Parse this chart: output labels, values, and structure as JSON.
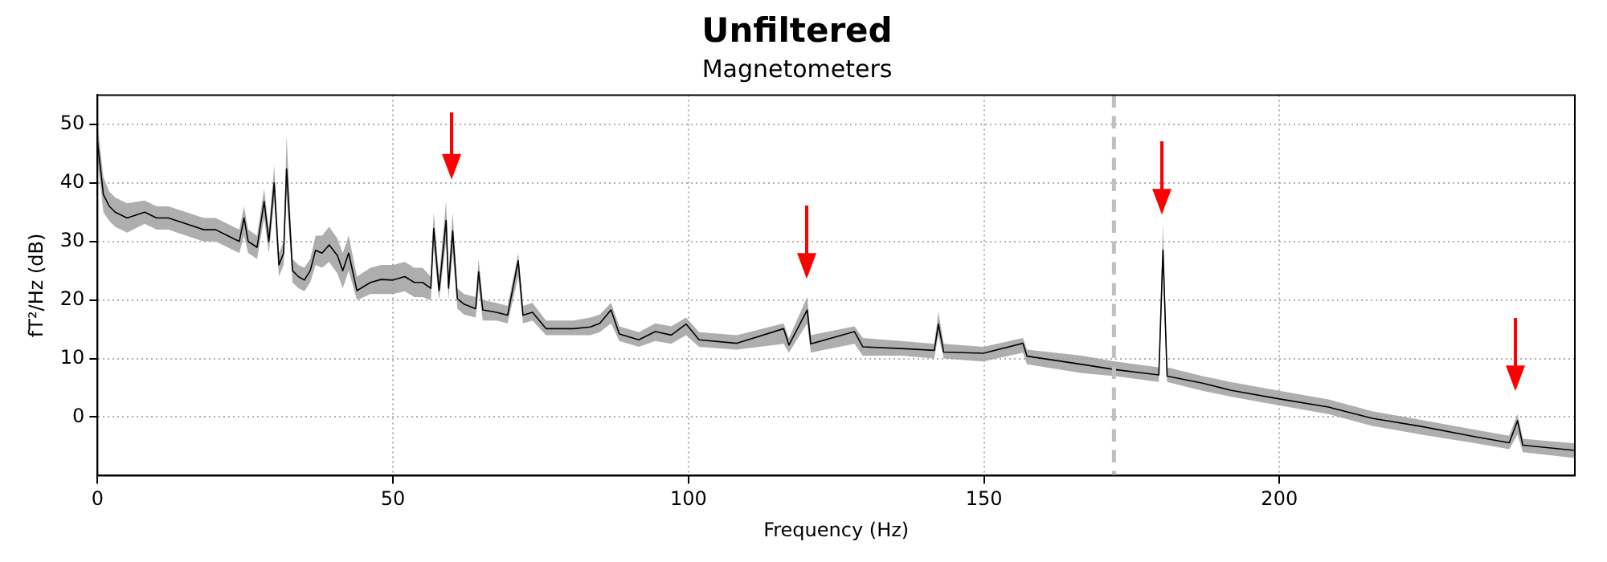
{
  "chart_data": {
    "type": "line",
    "title": "Unfiltered",
    "subtitle": "Magnetometers",
    "xlabel": "Frequency (Hz)",
    "ylabel": "fT²/Hz (dB)",
    "xlim": [
      0,
      250
    ],
    "xticks": [
      0,
      50,
      100,
      150,
      200
    ],
    "ylim": [
      -10,
      55
    ],
    "yticks": [
      0,
      10,
      20,
      30,
      40,
      50
    ],
    "grid": true,
    "legend": false,
    "marker": "none",
    "line_style": "solid",
    "ref_lines": [
      {
        "axis": "x",
        "value": 172,
        "color": "#bfbfbf",
        "line_style": "dashed"
      }
    ],
    "x": [
      0,
      1,
      2,
      3,
      5,
      8,
      10,
      12,
      15,
      18,
      20,
      22,
      24,
      24.8,
      25.5,
      27,
      28.2,
      29,
      29.9,
      30.7,
      31.5,
      32,
      33,
      34,
      35,
      36,
      36.9,
      38,
      39.2,
      40.6,
      41.5,
      42.5,
      43.9,
      46.2,
      48,
      50,
      52,
      53.6,
      55,
      56.4,
      56.9,
      57.8,
      59,
      59.4,
      60.1,
      60.9,
      62,
      64,
      64.5,
      65.2,
      67.5,
      69.4,
      71.2,
      72,
      73.6,
      75.9,
      80.6,
      83.4,
      85,
      86.9,
      88.3,
      91.6,
      94.4,
      97.1,
      99.6,
      101.8,
      108.2,
      116.1,
      117,
      120.1,
      120.7,
      128.1,
      129.5,
      136,
      141.6,
      142.3,
      143.2,
      149.9,
      156.6,
      157.3,
      166.6,
      172.2,
      179.6,
      180.3,
      181,
      187,
      191.7,
      200,
      208.3,
      215.7,
      224,
      233.3,
      238.9,
      240.3,
      241.2,
      250
    ],
    "series": [
      {
        "color": "#000000",
        "values": [
          47,
          38,
          36,
          35,
          34,
          35,
          34,
          34,
          33,
          32,
          32,
          31,
          30,
          34,
          30,
          29,
          36.8,
          30,
          40,
          26,
          28,
          42.4,
          25,
          24,
          23.4,
          25,
          28.5,
          28,
          29.4,
          27.6,
          25,
          28,
          21.6,
          23,
          23.5,
          23.4,
          24,
          23,
          23,
          22,
          32.2,
          21.6,
          33.6,
          22,
          31.8,
          20.2,
          19.3,
          18.5,
          24.8,
          18.3,
          17.9,
          17.4,
          26.7,
          17.4,
          17.9,
          15.1,
          15.1,
          15.4,
          16,
          18.3,
          14.2,
          13.2,
          14.6,
          14,
          15.9,
          13.2,
          12.6,
          15.1,
          12.3,
          18.3,
          12.5,
          14.6,
          12,
          11.7,
          11.4,
          15.9,
          11.1,
          10.9,
          12.6,
          10.4,
          9,
          8.1,
          7.2,
          28.5,
          7,
          5.8,
          4.6,
          3.1,
          1.7,
          -0.2,
          -1.6,
          -3.4,
          -4.4,
          -0.6,
          -4.8,
          -5.7
        ],
        "lower": [
          44,
          35,
          33.5,
          32.5,
          31.5,
          33,
          32,
          32,
          31,
          30,
          30,
          29,
          28,
          31,
          28,
          27,
          34,
          28,
          37,
          24,
          26,
          38,
          23,
          22,
          21.5,
          23,
          26,
          25.5,
          26.5,
          24.5,
          22,
          25,
          20,
          21,
          21,
          21,
          21.5,
          20.5,
          20.5,
          20,
          29,
          20,
          30,
          20,
          28,
          18.5,
          17.5,
          17,
          22,
          16.5,
          16.5,
          16,
          24,
          16,
          16.5,
          14,
          14,
          14,
          14.5,
          16,
          13,
          12,
          13,
          12.5,
          14,
          12,
          11.5,
          12.5,
          11,
          16,
          11,
          12.5,
          10.5,
          10.5,
          10,
          14,
          10,
          9.5,
          11,
          9,
          7.5,
          7,
          6,
          25,
          6,
          4.5,
          3.5,
          2,
          0.5,
          -1.5,
          -3,
          -4.5,
          -5.5,
          -3,
          -6,
          -7
        ],
        "upper": [
          50,
          41,
          38.5,
          37.5,
          36.5,
          37,
          36,
          36,
          35,
          34,
          34,
          33,
          32,
          36,
          32,
          31,
          39,
          32,
          43,
          28,
          30,
          48,
          27,
          26,
          25.5,
          27,
          31,
          31,
          32.5,
          30.5,
          28,
          31,
          24,
          25.5,
          26,
          26,
          26.5,
          25.5,
          25.5,
          24,
          35,
          24,
          37,
          24.5,
          35,
          22,
          21,
          20.5,
          27,
          20,
          19.5,
          19,
          28,
          19,
          19.5,
          16.5,
          16.5,
          17,
          17.5,
          19.5,
          15.5,
          14.5,
          16,
          15.5,
          17,
          14.5,
          14,
          16,
          13.5,
          20.5,
          14,
          15.5,
          13.5,
          13,
          12.5,
          18,
          12.5,
          12,
          13.5,
          11.5,
          10.5,
          9.5,
          8.5,
          33,
          8.5,
          7,
          6,
          4.5,
          3,
          1,
          -0.5,
          -2.2,
          -3.2,
          0.5,
          -3.7,
          -4.5
        ]
      }
    ]
  }
}
